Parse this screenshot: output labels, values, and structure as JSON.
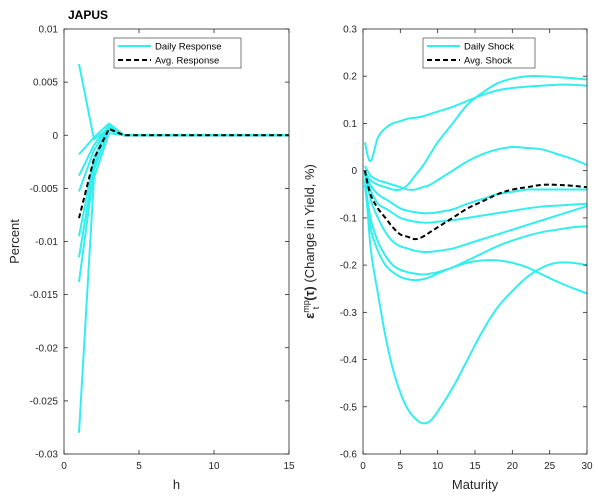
{
  "chart_data": [
    {
      "type": "line",
      "title": "JAPUS",
      "xlabel": "h",
      "ylabel": "Percent",
      "xlim": [
        0,
        15
      ],
      "ylim": [
        -0.03,
        0.01
      ],
      "xticks": [
        0,
        5,
        10,
        15
      ],
      "yticks": [
        -0.03,
        -0.025,
        -0.02,
        -0.015,
        -0.01,
        -0.005,
        0,
        0.005,
        0.01
      ],
      "ytick_labels": [
        "-0.03",
        "-0.025",
        "-0.02",
        "-0.015",
        "-0.01",
        "-0.005",
        "0",
        "0.005",
        "0.01"
      ],
      "legend_position": "top-center",
      "legend": [
        "Daily Response",
        "Avg. Response"
      ],
      "colors": {
        "daily": "#33EEEE",
        "avg": "#000000"
      },
      "x": [
        1,
        2,
        3,
        4,
        5,
        6,
        7,
        8,
        9,
        10,
        11,
        12,
        13,
        14,
        15
      ],
      "series": [
        {
          "values": [
            0.0067,
            -0.0004,
            0.0007,
            0,
            0,
            0,
            0,
            0,
            0,
            0,
            0,
            0,
            0,
            0,
            0
          ]
        },
        {
          "values": [
            -0.0018,
            -0.0002,
            0.0011,
            0,
            0,
            0,
            0,
            0,
            0,
            0,
            0,
            0,
            0,
            0,
            0
          ]
        },
        {
          "values": [
            -0.0038,
            -0.0009,
            0.0009,
            0,
            0,
            0,
            0,
            0,
            0,
            0,
            0,
            0,
            0,
            0,
            0
          ]
        },
        {
          "values": [
            -0.0053,
            -0.0014,
            0.0008,
            0,
            0,
            0,
            0,
            0,
            0,
            0,
            0,
            0,
            0,
            0,
            0
          ]
        },
        {
          "values": [
            -0.0095,
            -0.0022,
            0.001,
            0,
            0,
            0,
            0,
            0,
            0,
            0,
            0,
            0,
            0,
            0,
            0
          ]
        },
        {
          "values": [
            -0.0115,
            -0.0028,
            0.0005,
            0,
            0,
            0,
            0,
            0,
            0,
            0,
            0,
            0,
            0,
            0,
            0
          ]
        },
        {
          "values": [
            -0.0138,
            -0.0033,
            0.0007,
            0,
            0,
            0,
            0,
            0,
            0,
            0,
            0,
            0,
            0,
            0,
            0
          ]
        },
        {
          "values": [
            -0.028,
            -0.004,
            0.0002,
            0,
            0,
            0,
            0,
            0,
            0,
            0,
            0,
            0,
            0,
            0,
            0
          ]
        }
      ],
      "avg": [
        -0.0078,
        -0.0022,
        0.0006,
        0,
        0,
        0,
        0,
        0,
        0,
        0,
        0,
        0,
        0,
        0,
        0
      ]
    },
    {
      "type": "line",
      "title": "",
      "xlabel": "Maturity",
      "ylabel": "ε_t^mp(τ) (Change in Yield, %)",
      "ylabel_parts": {
        "sym": "ε",
        "sup": "mp",
        "sub": "t",
        "arg": "(τ)",
        "rest": " (Change in Yield, %)"
      },
      "xlim": [
        0,
        30
      ],
      "ylim": [
        -0.6,
        0.3
      ],
      "xticks": [
        0,
        5,
        10,
        15,
        20,
        25,
        30
      ],
      "yticks": [
        -0.6,
        -0.5,
        -0.4,
        -0.3,
        -0.2,
        -0.1,
        0,
        0.1,
        0.2,
        0.3
      ],
      "ytick_labels": [
        "-0.6",
        "-0.5",
        "-0.4",
        "-0.3",
        "-0.2",
        "-0.1",
        "0",
        "0.1",
        "0.2",
        "0.3"
      ],
      "legend_position": "top-center",
      "legend": [
        "Daily Shock",
        "Avg. Shock"
      ],
      "colors": {
        "daily": "#33EEEE",
        "avg": "#000000"
      },
      "x": [
        0.25,
        1,
        2,
        3,
        4,
        5,
        6,
        7,
        8,
        9,
        10,
        12,
        14,
        16,
        18,
        20,
        22,
        24,
        26,
        28,
        30
      ],
      "series": [
        {
          "values": [
            0.06,
            0.02,
            0.07,
            0.09,
            0.1,
            0.105,
            0.11,
            0.112,
            0.115,
            0.12,
            0.125,
            0.135,
            0.148,
            0.16,
            0.17,
            0.175,
            0.178,
            0.18,
            0.182,
            0.182,
            0.18
          ]
        },
        {
          "values": [
            0.0,
            -0.02,
            -0.03,
            -0.035,
            -0.04,
            -0.04,
            -0.03,
            -0.01,
            0.01,
            0.035,
            0.06,
            0.1,
            0.14,
            0.165,
            0.185,
            0.195,
            0.2,
            0.2,
            0.198,
            0.196,
            0.193
          ]
        },
        {
          "values": [
            0.01,
            -0.01,
            -0.02,
            -0.025,
            -0.03,
            -0.035,
            -0.04,
            -0.04,
            -0.035,
            -0.03,
            -0.02,
            0.0,
            0.02,
            0.035,
            0.045,
            0.05,
            0.048,
            0.045,
            0.035,
            0.025,
            0.012
          ]
        },
        {
          "values": [
            0.0,
            -0.03,
            -0.05,
            -0.06,
            -0.07,
            -0.08,
            -0.085,
            -0.088,
            -0.09,
            -0.09,
            -0.088,
            -0.082,
            -0.07,
            -0.06,
            -0.05,
            -0.045,
            -0.04,
            -0.04,
            -0.04,
            -0.04,
            -0.04
          ]
        },
        {
          "values": [
            0.0,
            -0.04,
            -0.07,
            -0.08,
            -0.09,
            -0.1,
            -0.105,
            -0.108,
            -0.11,
            -0.11,
            -0.108,
            -0.105,
            -0.1,
            -0.095,
            -0.09,
            -0.085,
            -0.08,
            -0.076,
            -0.074,
            -0.072,
            -0.07
          ]
        },
        {
          "values": [
            0.0,
            -0.06,
            -0.1,
            -0.13,
            -0.15,
            -0.16,
            -0.165,
            -0.17,
            -0.172,
            -0.172,
            -0.17,
            -0.165,
            -0.155,
            -0.145,
            -0.135,
            -0.125,
            -0.115,
            -0.105,
            -0.095,
            -0.085,
            -0.075
          ]
        },
        {
          "values": [
            -0.02,
            -0.1,
            -0.15,
            -0.18,
            -0.2,
            -0.21,
            -0.215,
            -0.218,
            -0.22,
            -0.218,
            -0.215,
            -0.205,
            -0.19,
            -0.175,
            -0.16,
            -0.148,
            -0.138,
            -0.13,
            -0.125,
            -0.12,
            -0.118
          ]
        },
        {
          "values": [
            -0.03,
            -0.12,
            -0.17,
            -0.2,
            -0.215,
            -0.225,
            -0.23,
            -0.232,
            -0.23,
            -0.225,
            -0.218,
            -0.205,
            -0.195,
            -0.19,
            -0.19,
            -0.195,
            -0.205,
            -0.22,
            -0.235,
            -0.248,
            -0.26
          ]
        },
        {
          "values": [
            0.0,
            -0.16,
            -0.26,
            -0.35,
            -0.42,
            -0.47,
            -0.505,
            -0.525,
            -0.535,
            -0.53,
            -0.51,
            -0.46,
            -0.4,
            -0.34,
            -0.29,
            -0.255,
            -0.225,
            -0.205,
            -0.195,
            -0.195,
            -0.2
          ]
        }
      ],
      "avg": [
        0.0,
        -0.05,
        -0.08,
        -0.1,
        -0.12,
        -0.135,
        -0.14,
        -0.145,
        -0.14,
        -0.13,
        -0.12,
        -0.1,
        -0.08,
        -0.065,
        -0.05,
        -0.04,
        -0.035,
        -0.03,
        -0.03,
        -0.032,
        -0.035
      ]
    }
  ]
}
